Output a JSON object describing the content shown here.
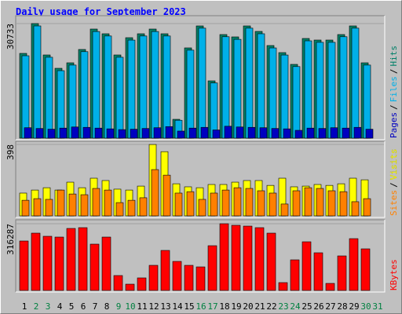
{
  "chart_data": {
    "type": "bar",
    "title": "Daily usage for September 2023",
    "categories": [
      "1",
      "2",
      "3",
      "4",
      "5",
      "6",
      "7",
      "8",
      "9",
      "10",
      "11",
      "12",
      "13",
      "14",
      "15",
      "16",
      "17",
      "18",
      "19",
      "20",
      "21",
      "22",
      "23",
      "24",
      "25",
      "26",
      "27",
      "28",
      "29",
      "30",
      "31"
    ],
    "category_colors": [
      "#000000",
      "#008040",
      "#008040",
      "#000000",
      "#000000",
      "#000000",
      "#000000",
      "#000000",
      "#008040",
      "#008040",
      "#000000",
      "#000000",
      "#000000",
      "#000000",
      "#000000",
      "#008040",
      "#008040",
      "#000000",
      "#000000",
      "#000000",
      "#000000",
      "#000000",
      "#008040",
      "#008040",
      "#000000",
      "#000000",
      "#000000",
      "#000000",
      "#000000",
      "#008040",
      "#008040"
    ],
    "panels": [
      {
        "ylim": [
          0,
          32417
        ],
        "yticks": [
          30733
        ],
        "separator": "/",
        "series": [
          {
            "name": "Pages",
            "color": "#0000c0",
            "values": [
              2800,
              2600,
              2400,
              2700,
              3000,
              2900,
              2700,
              2500,
              2300,
              2400,
              2600,
              2800,
              3100,
              1900,
              2700,
              2900,
              2200,
              3200,
              3000,
              2900,
              2800,
              2600,
              2500,
              2100,
              2700,
              2600,
              2800,
              2700,
              2900,
              2400,
              null
            ]
          },
          {
            "name": "Files",
            "color": "#00b0e8",
            "values": [
              22100,
              30100,
              21700,
              18100,
              19600,
              23200,
              28600,
              27400,
              21700,
              26300,
              27400,
              28600,
              27400,
              4800,
              23600,
              29500,
              14800,
              27200,
              26500,
              29500,
              28000,
              24200,
              22300,
              19200,
              26100,
              25700,
              25700,
              27200,
              29500,
              19600,
              null
            ]
          },
          {
            "name": "Hits",
            "color": "#008068",
            "values": [
              22734,
              30733,
              22313,
              18735,
              20208,
              23787,
              29260,
              27997,
              22313,
              26944,
              27997,
              29260,
              27997,
              5052,
              24208,
              30102,
              15367,
              27786,
              27155,
              30102,
              28628,
              24839,
              22945,
              19787,
              26734,
              26313,
              26313,
              27786,
              30102,
              20208,
              null
            ]
          }
        ]
      },
      {
        "ylim": [
          0,
          407
        ],
        "yticks": [
          398
        ],
        "separator": "/",
        "series": [
          {
            "name": "Sites",
            "color": "#ff8000",
            "values": [
              87,
              96,
              92,
              144,
              122,
              118,
              153,
              144,
              74,
              87,
              101,
              258,
              227,
              127,
              135,
              92,
              127,
              144,
              157,
              153,
              140,
              127,
              66,
              140,
              157,
              153,
              140,
              135,
              79,
              96,
              null
            ]
          },
          {
            "name": "Visits",
            "color": "#ffff00",
            "values": [
              127,
              144,
              157,
              144,
              188,
              157,
              210,
              197,
              149,
              144,
              166,
              398,
              358,
              179,
              162,
              157,
              175,
              175,
              188,
              197,
              197,
              170,
              210,
              162,
              166,
              175,
              170,
              179,
              210,
              201,
              null
            ]
          }
        ]
      },
      {
        "ylim": [
          0,
          327450
        ],
        "yticks": [
          316287
        ],
        "series": [
          {
            "name": "KBytes",
            "color": "#ff0000",
            "values": [
              234423,
              271633,
              256749,
              253028,
              293959,
              297680,
              219539,
              253028,
              70699,
              29768,
              59536,
              119072,
              189771,
              137677,
              119072,
              111630,
              212097,
              316287,
              308843,
              305122,
              297680,
              271633,
              37210,
              145119,
              230702,
              178608,
              33489,
              163724,
              245586,
              197213,
              null
            ]
          }
        ]
      }
    ]
  }
}
